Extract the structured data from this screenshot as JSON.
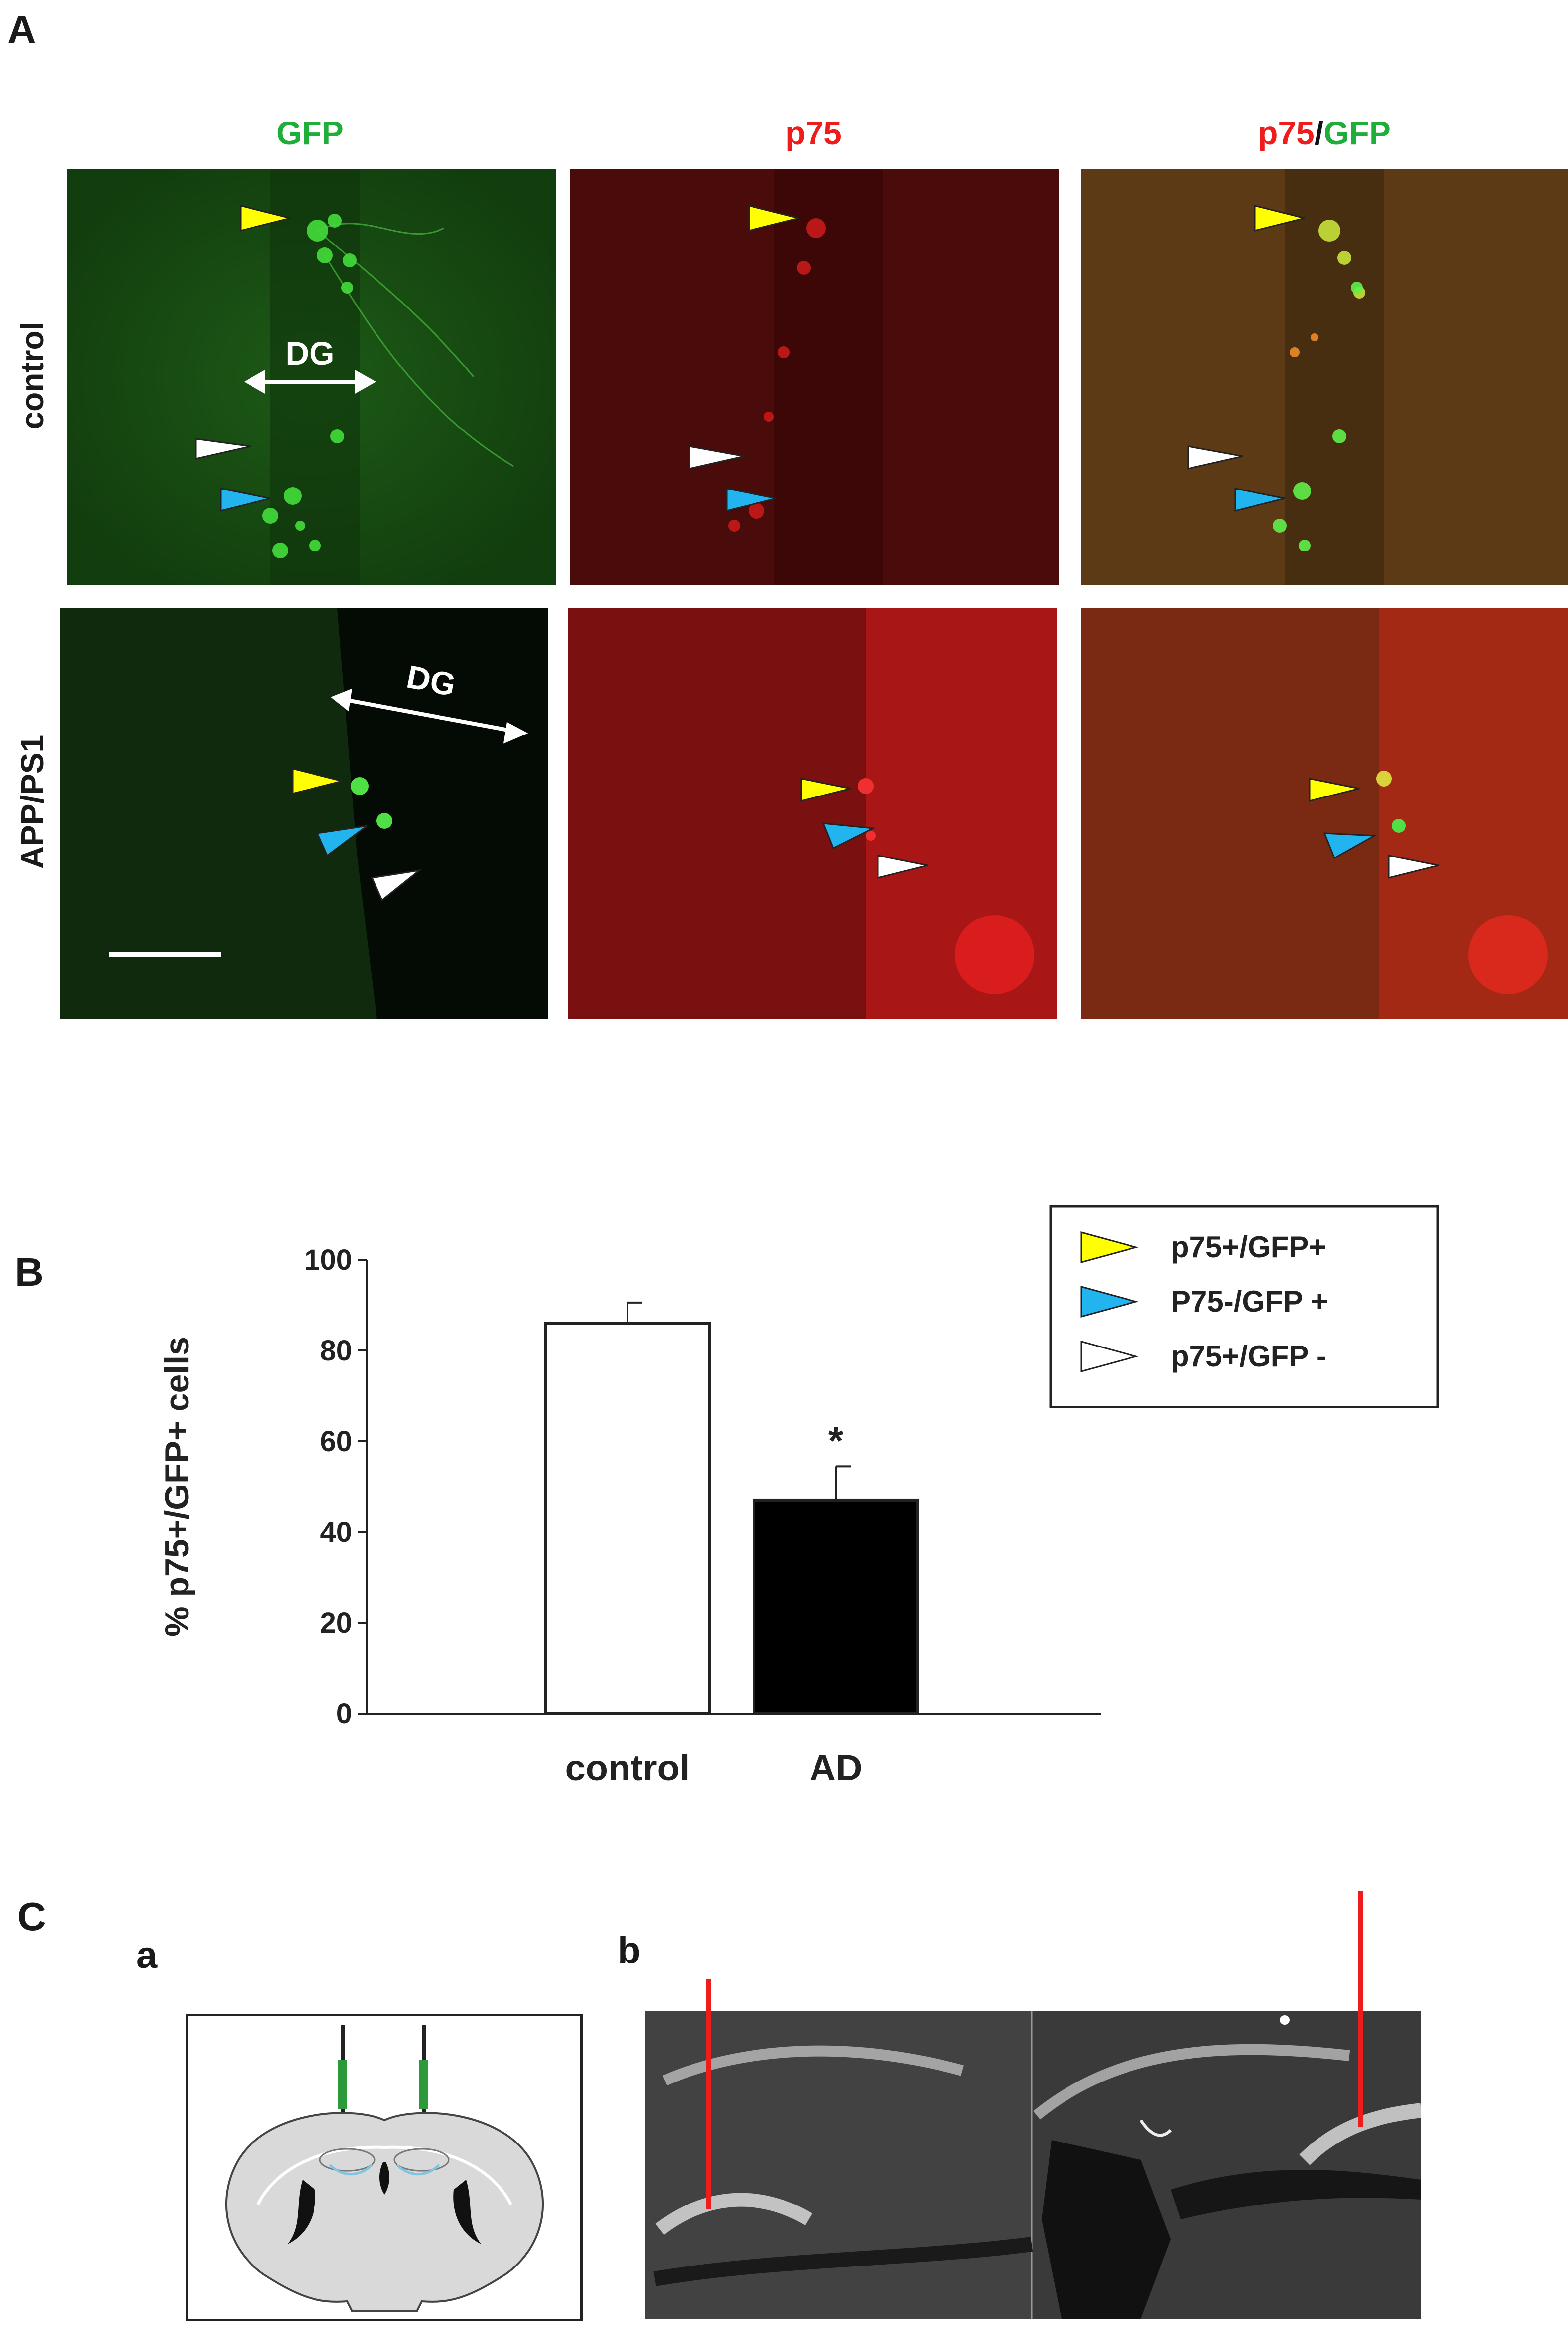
{
  "panels": {
    "A": "A",
    "B": "B",
    "C": "C",
    "Ca": "a",
    "Cb": "b"
  },
  "panelA": {
    "columns": [
      {
        "parts": [
          {
            "text": "GFP",
            "color": "#1fae3a"
          }
        ]
      },
      {
        "parts": [
          {
            "text": "p75",
            "color": "#ee1c1c"
          }
        ]
      },
      {
        "parts": [
          {
            "text": "p75",
            "color": "#ee1c1c"
          },
          {
            "text": "/",
            "color": "#111111"
          },
          {
            "text": "GFP",
            "color": "#1fae3a"
          }
        ]
      }
    ],
    "rows": [
      "control",
      "APP/PS1"
    ],
    "dg_label": "DG",
    "arrow_colors": {
      "yellow": "#ffff00",
      "blue": "#22b4ee",
      "white": "#ffffff"
    }
  },
  "chart_data": {
    "type": "bar",
    "categories": [
      "control",
      "AD"
    ],
    "values": [
      86,
      47
    ],
    "errors": [
      4.5,
      7.5
    ],
    "bar_colors": [
      "#ffffff",
      "#000000"
    ],
    "significance": [
      "",
      "*"
    ],
    "ylabel": "% p75+/GFP+  cells",
    "ylim": [
      0,
      100
    ],
    "yticks": [
      0,
      20,
      40,
      60,
      80,
      100
    ],
    "legend": [
      {
        "label": "p75+/GFP+",
        "color": "#ffff00"
      },
      {
        "label": "P75-/GFP +",
        "color": "#22b4ee"
      },
      {
        "label": "p75+/GFP -",
        "color": "#ffffff"
      }
    ],
    "legend_position": "top-right"
  }
}
